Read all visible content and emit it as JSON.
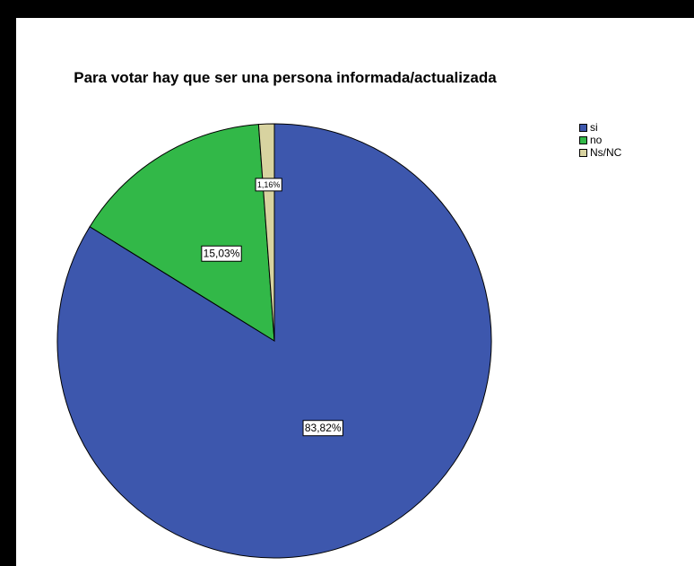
{
  "chart_data": {
    "type": "pie",
    "title": "Para votar hay que ser una persona informada/actualizada",
    "slices": [
      {
        "name": "si",
        "value": 83.82,
        "label": "83,82%",
        "color": "#3d57ad"
      },
      {
        "name": "no",
        "value": 15.03,
        "label": "15,03%",
        "color": "#32b848"
      },
      {
        "name": "Ns/NC",
        "value": 1.16,
        "label": "1,16%",
        "color": "#d8d3a0"
      }
    ],
    "legend": {
      "position": "top-right",
      "entries": [
        "si",
        "no",
        "Ns/NC"
      ]
    },
    "start_angle_deg": 0,
    "direction": "clockwise"
  }
}
